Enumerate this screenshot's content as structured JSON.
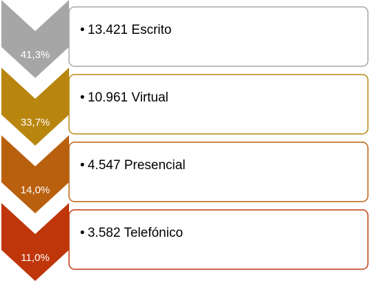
{
  "items": [
    {
      "percent": "41,3%",
      "text": "13.421 Escrito",
      "color": "#a6a6a6"
    },
    {
      "percent": "33,7%",
      "text": "10.961 Virtual",
      "color": "#b8860f"
    },
    {
      "percent": "14,0%",
      "text": "4.547 Presencial",
      "color": "#b9600f"
    },
    {
      "percent": "11,0%",
      "text": "3.582 Telefónico",
      "color": "#bf360a"
    }
  ]
}
